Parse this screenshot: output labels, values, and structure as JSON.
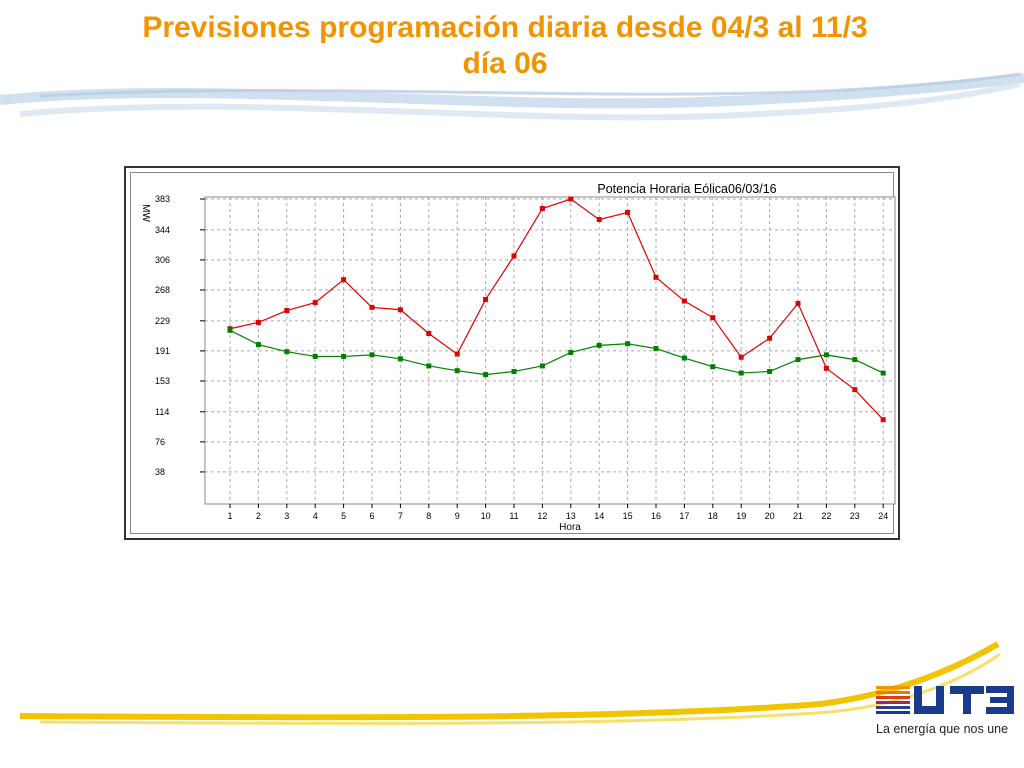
{
  "slide": {
    "title_line1": "Previsiones programación diaria desde 04/3 al 11/3",
    "title_line2": "día 06"
  },
  "brand": {
    "tagline": "La energía que nos une",
    "logo_text": "UTE",
    "accent_color": "#f29400"
  },
  "chart_data": {
    "type": "line",
    "title": "Potencia Horaria Eólica06/03/16",
    "xlabel": "Hora",
    "ylabel": "MW",
    "categories": [
      "1",
      "2",
      "3",
      "4",
      "5",
      "6",
      "7",
      "8",
      "9",
      "10",
      "11",
      "12",
      "13",
      "14",
      "15",
      "16",
      "17",
      "18",
      "19",
      "20",
      "21",
      "22",
      "23",
      "24"
    ],
    "y_ticks": [
      "383",
      "344",
      "306",
      "268",
      "229",
      "191",
      "153",
      "114",
      "76",
      "38"
    ],
    "ylim": [
      0,
      383
    ],
    "grid": true,
    "legend": "none",
    "series": [
      {
        "color": "#e00000",
        "values": [
          219,
          227,
          242,
          252,
          281,
          246,
          243,
          213,
          187,
          256,
          311,
          371,
          383,
          357,
          366,
          284,
          254,
          233,
          183,
          207,
          251,
          169,
          142,
          104
        ]
      },
      {
        "color": "#008000",
        "values": [
          217,
          199,
          190,
          184,
          184,
          186,
          181,
          172,
          166,
          161,
          165,
          172,
          189,
          198,
          200,
          194,
          182,
          171,
          163,
          165,
          180,
          186,
          180,
          163
        ]
      }
    ]
  }
}
